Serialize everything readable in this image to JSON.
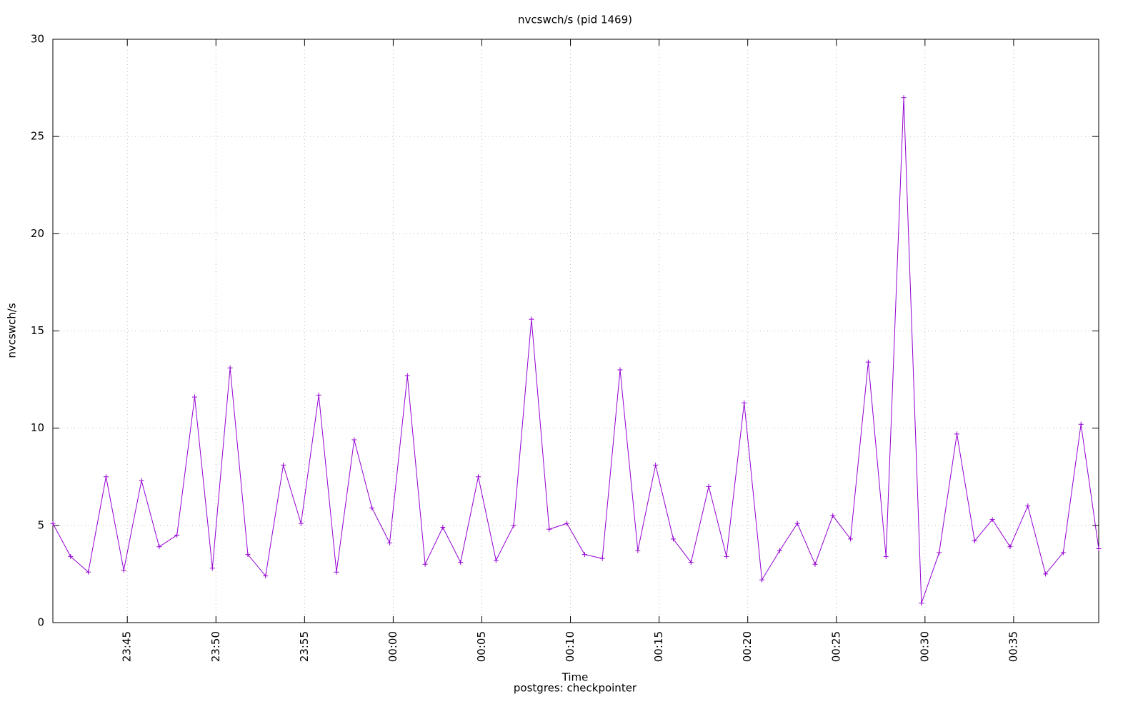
{
  "chart_data": {
    "type": "line",
    "title": "nvcswch/s (pid 1469)",
    "xlabel": "Time",
    "ylabel": "nvcswch/s",
    "subtitle": "postgres: checkpointer",
    "x": [
      -19.2,
      -18.2,
      -17.2,
      -16.2,
      -15.2,
      -14.2,
      -13.2,
      -12.2,
      -11.2,
      -10.2,
      -9.2,
      -8.2,
      -7.2,
      -6.2,
      -5.2,
      -4.2,
      -3.2,
      -2.2,
      -1.2,
      -0.2,
      0.8,
      1.8,
      2.8,
      3.8,
      4.8,
      5.8,
      6.8,
      7.8,
      8.8,
      9.8,
      10.8,
      11.8,
      12.8,
      13.8,
      14.8,
      15.8,
      16.8,
      17.8,
      18.8,
      19.8,
      20.8,
      21.8,
      22.8,
      23.8,
      24.8,
      25.8,
      26.8,
      27.8,
      28.8,
      29.8,
      30.8,
      31.8,
      32.8,
      33.8,
      34.8,
      35.8,
      36.8,
      37.8,
      38.8,
      39.8
    ],
    "series": [
      {
        "name": "nvcswch/s",
        "color": "#9400d3",
        "values": [
          5.1,
          3.4,
          2.6,
          7.5,
          2.7,
          7.3,
          3.9,
          4.5,
          11.6,
          2.8,
          13.1,
          3.5,
          2.4,
          8.1,
          5.1,
          11.7,
          2.6,
          9.4,
          5.9,
          4.1,
          12.7,
          3.0,
          4.9,
          3.1,
          7.5,
          3.2,
          5.0,
          15.6,
          4.8,
          5.1,
          3.5,
          3.3,
          13.0,
          3.7,
          8.1,
          4.3,
          3.1,
          7.0,
          3.4,
          11.3,
          2.2,
          3.7,
          5.1,
          3.0,
          5.5,
          4.3,
          13.4,
          3.4,
          27.0,
          1.0,
          3.6,
          9.7,
          4.2,
          5.3,
          3.9,
          6.0,
          2.5,
          3.6,
          10.2,
          3.8
        ]
      }
    ],
    "xlim": [
      -19.2,
      39.8
    ],
    "xticks": [
      {
        "value": -15,
        "label": "23:45"
      },
      {
        "value": -10,
        "label": "23:50"
      },
      {
        "value": -5,
        "label": "23:55"
      },
      {
        "value": 0,
        "label": "00:00"
      },
      {
        "value": 5,
        "label": "00:05"
      },
      {
        "value": 10,
        "label": "00:10"
      },
      {
        "value": 15,
        "label": "00:15"
      },
      {
        "value": 20,
        "label": "00:20"
      },
      {
        "value": 25,
        "label": "00:25"
      },
      {
        "value": 30,
        "label": "00:30"
      },
      {
        "value": 35,
        "label": "00:35"
      }
    ],
    "ylim": [
      0,
      30
    ],
    "yticks": [
      0,
      5,
      10,
      15,
      20,
      25,
      30
    ],
    "grid": true,
    "markers": true
  }
}
